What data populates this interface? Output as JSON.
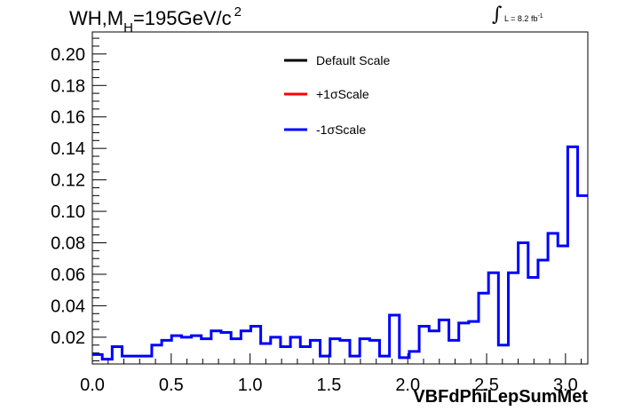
{
  "title": {
    "main": "WH,M",
    "sub": "H",
    "rest": "=195GeV/c",
    "sup": "2"
  },
  "lumi": {
    "integral": "∫",
    "text": "L = 8.2 fb",
    "sup": "-1"
  },
  "chart_data": {
    "type": "line",
    "xlabel": "VBFdPhiLepSumMet",
    "ylabel": "",
    "xlim": [
      0.0,
      3.1416
    ],
    "ylim": [
      0.003,
      0.214
    ],
    "x_ticks": [
      "0.0",
      "0.5",
      "1.0",
      "1.5",
      "2.0",
      "2.5",
      "3.0"
    ],
    "y_ticks": [
      "0.02",
      "0.04",
      "0.06",
      "0.08",
      "0.10",
      "0.12",
      "0.14",
      "0.16",
      "0.18",
      "0.20"
    ],
    "legend_position": "top-center",
    "bin_edges_start": 0.0,
    "bin_width": 0.0628,
    "series": [
      {
        "name": "Default Scale",
        "color": "#000000"
      },
      {
        "name": "+1σScale",
        "color": "#ff0000"
      },
      {
        "name": "-1σScale",
        "color": "#0000ff"
      }
    ],
    "values": [
      0.009,
      0.006,
      0.014,
      0.008,
      0.008,
      0.008,
      0.015,
      0.018,
      0.021,
      0.02,
      0.021,
      0.019,
      0.024,
      0.023,
      0.019,
      0.024,
      0.027,
      0.016,
      0.02,
      0.014,
      0.02,
      0.014,
      0.018,
      0.008,
      0.019,
      0.018,
      0.008,
      0.019,
      0.018,
      0.008,
      0.034,
      0.007,
      0.011,
      0.027,
      0.024,
      0.031,
      0.018,
      0.029,
      0.03,
      0.048,
      0.061,
      0.015,
      0.061,
      0.08,
      0.058,
      0.069,
      0.086,
      0.078,
      0.141,
      0.11
    ]
  }
}
